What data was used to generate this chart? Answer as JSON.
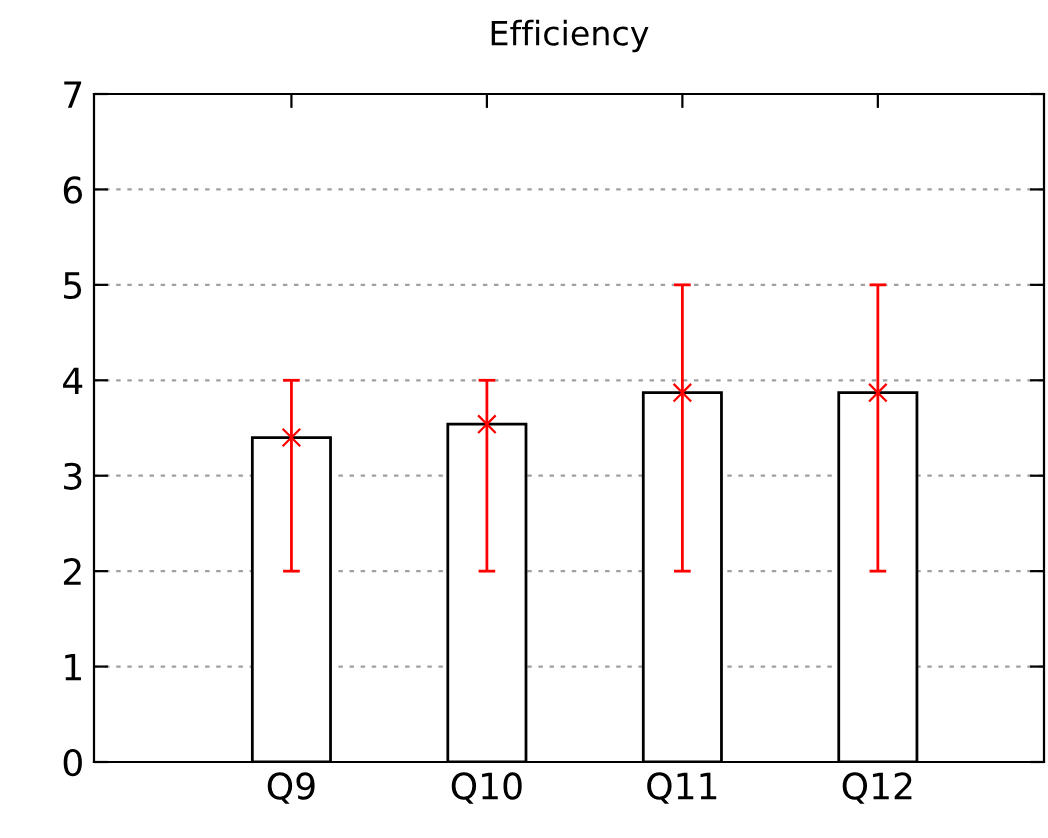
{
  "chart_data": {
    "type": "bar",
    "title": "Efficiency",
    "categories": [
      "Q9",
      "Q10",
      "Q11",
      "Q12"
    ],
    "series": [
      {
        "color": "#ffffff",
        "values": [
          3.4,
          3.54,
          3.87,
          3.87
        ]
      },
      {
        "type": "scatter",
        "color": "#ff0000",
        "x": [
          "Q9",
          "Q10",
          "Q11",
          "Q12"
        ],
        "values": [
          3.4,
          3.54,
          3.87,
          3.87
        ],
        "errors": [
          [
            2,
            4
          ],
          [
            2,
            4
          ],
          [
            2,
            5
          ],
          [
            2,
            5
          ]
        ],
        "marker": "cross"
      }
    ],
    "ylim": [
      0,
      7
    ],
    "yticks": [
      0,
      1,
      2,
      3,
      4,
      5,
      6,
      7
    ],
    "grid": "y",
    "legend": false
  }
}
